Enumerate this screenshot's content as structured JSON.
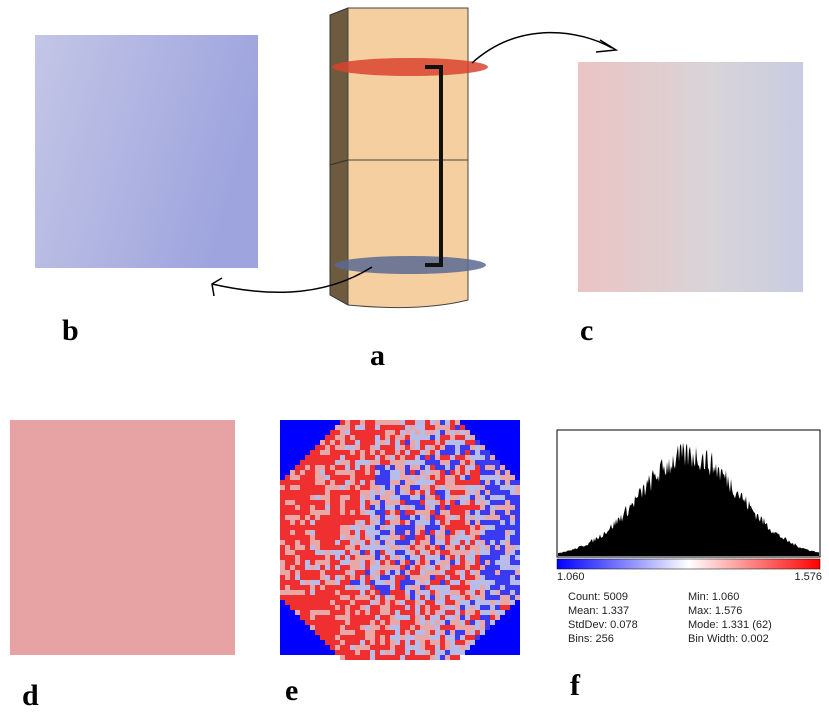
{
  "panels": {
    "a": "a",
    "b": "b",
    "c": "c",
    "d": "d",
    "e": "e",
    "f": "f"
  },
  "histogram": {
    "min_label": "1.060",
    "max_label": "1.576",
    "stats_left": [
      "Count: 5009",
      "Mean: 1.337",
      "StdDev: 0.078",
      "Bins: 256"
    ],
    "stats_right": [
      "Min: 1.060",
      "Max: 1.576",
      "Mode: 1.331 (62)",
      "Bin Width: 0.002"
    ]
  }
}
